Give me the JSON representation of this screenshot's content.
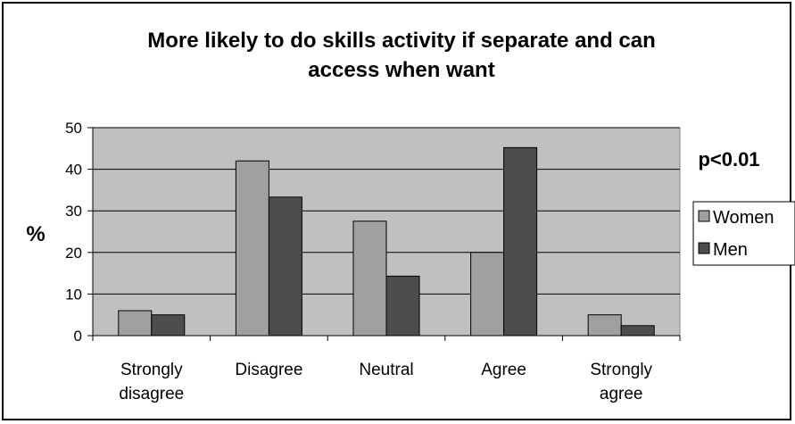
{
  "chart_data": {
    "type": "bar",
    "title_lines": [
      "More likely to do skills activity if separate and can",
      "access when want"
    ],
    "ylabel": "%",
    "xlabel": "",
    "ylim": [
      0,
      50
    ],
    "yticks": [
      "0",
      "10",
      "20",
      "30",
      "40",
      "50"
    ],
    "grid": true,
    "legend_position": "right",
    "annotation": "p<0.01",
    "categories": [
      [
        "Strongly",
        "disagree"
      ],
      [
        "Disagree"
      ],
      [
        "Neutral"
      ],
      [
        "Agree"
      ],
      [
        "Strongly",
        "agree"
      ]
    ],
    "series": [
      {
        "name": "Women",
        "color": "#a0a0a0",
        "values": [
          6,
          42,
          27.5,
          20,
          5
        ]
      },
      {
        "name": "Men",
        "color": "#4d4d4d",
        "values": [
          5,
          33.3,
          14.3,
          45.2,
          2.4
        ]
      }
    ],
    "plot_background": "#c0c0c0"
  }
}
